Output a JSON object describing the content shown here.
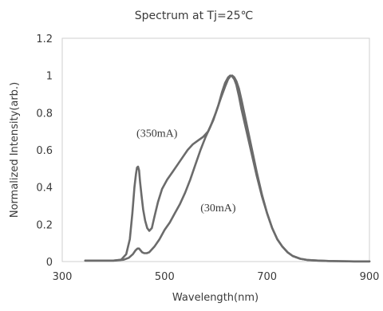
{
  "chart_data": {
    "type": "line",
    "title": "Spectrum    at Tj=25℃",
    "xlabel": "Wavelength(nm)",
    "ylabel": "Normalized Intensity(arb.)",
    "xlim": [
      300,
      900
    ],
    "ylim": [
      0,
      1.2
    ],
    "x_ticks": [
      "300",
      "500",
      "700",
      "900"
    ],
    "x_tick_values": [
      300,
      500,
      700,
      900
    ],
    "y_ticks": [
      "0",
      "0.2",
      "0.4",
      "0.6",
      "0.8",
      "1",
      "1.2"
    ],
    "y_tick_values": [
      0,
      0.2,
      0.4,
      0.6,
      0.8,
      1,
      1.2
    ],
    "grid": false,
    "legend": "none",
    "line_color": "#6b6b6b",
    "series": [
      {
        "name": "(350mA)",
        "x": [
          345,
          380,
          400,
          415,
          425,
          432,
          437,
          441,
          444,
          446,
          448,
          450,
          452,
          455,
          458,
          462,
          466,
          470,
          475,
          480,
          487,
          495,
          505,
          515,
          525,
          535,
          545,
          555,
          565,
          575,
          585,
          595,
          605,
          612,
          618,
          624,
          628,
          632,
          636,
          640,
          645,
          650,
          660,
          670,
          680,
          690,
          700,
          710,
          720,
          730,
          740,
          750,
          765,
          780,
          800,
          820,
          840,
          870,
          900
        ],
        "y": [
          0.005,
          0.005,
          0.005,
          0.01,
          0.04,
          0.12,
          0.26,
          0.4,
          0.47,
          0.505,
          0.51,
          0.49,
          0.43,
          0.35,
          0.28,
          0.22,
          0.18,
          0.165,
          0.18,
          0.24,
          0.32,
          0.39,
          0.44,
          0.48,
          0.52,
          0.56,
          0.6,
          0.63,
          0.65,
          0.67,
          0.7,
          0.76,
          0.84,
          0.91,
          0.96,
          0.99,
          1.0,
          0.995,
          0.98,
          0.95,
          0.89,
          0.82,
          0.7,
          0.58,
          0.46,
          0.35,
          0.26,
          0.18,
          0.12,
          0.08,
          0.05,
          0.03,
          0.015,
          0.008,
          0.005,
          0.003,
          0.002,
          0.001,
          0.001
        ]
      },
      {
        "name": "(30mA)",
        "x": [
          345,
          400,
          420,
          430,
          438,
          443,
          447,
          450,
          453,
          456,
          460,
          465,
          470,
          480,
          490,
          500,
          510,
          520,
          530,
          540,
          550,
          560,
          570,
          580,
          590,
          600,
          610,
          618,
          624,
          628,
          632,
          636,
          640,
          645,
          650,
          660,
          670,
          680,
          690,
          700,
          710,
          720,
          730,
          740,
          750,
          765,
          780,
          800,
          820,
          840,
          870,
          900
        ],
        "y": [
          0.005,
          0.005,
          0.01,
          0.02,
          0.04,
          0.06,
          0.07,
          0.07,
          0.06,
          0.05,
          0.045,
          0.045,
          0.05,
          0.08,
          0.12,
          0.17,
          0.21,
          0.26,
          0.31,
          0.37,
          0.44,
          0.52,
          0.6,
          0.67,
          0.73,
          0.8,
          0.88,
          0.94,
          0.98,
          0.995,
          1.0,
          0.99,
          0.97,
          0.93,
          0.87,
          0.74,
          0.61,
          0.48,
          0.36,
          0.26,
          0.18,
          0.12,
          0.08,
          0.05,
          0.03,
          0.015,
          0.008,
          0.005,
          0.003,
          0.002,
          0.001,
          0.001
        ]
      }
    ],
    "annotations": [
      {
        "text": "(350mA)",
        "x": 445,
        "y": 0.67
      },
      {
        "text": "(30mA)",
        "x": 570,
        "y": 0.27
      }
    ]
  }
}
